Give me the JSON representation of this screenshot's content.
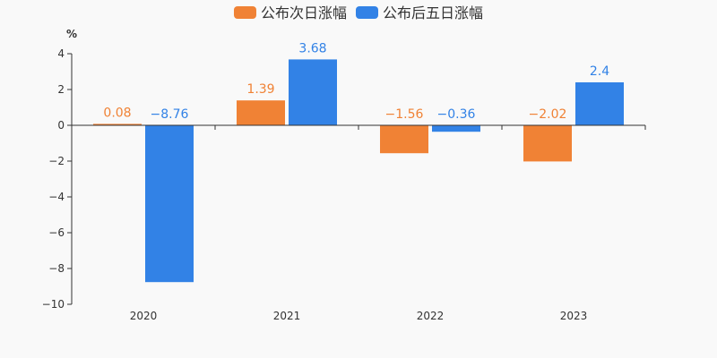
{
  "chart_data": {
    "type": "bar",
    "categories": [
      "2020",
      "2021",
      "2022",
      "2023"
    ],
    "series": [
      {
        "name": "公布次日涨幅",
        "values": [
          0.08,
          1.39,
          -1.56,
          -2.02
        ],
        "color": "#f08235"
      },
      {
        "name": "公布后五日涨幅",
        "values": [
          -8.76,
          3.68,
          -0.36,
          2.4
        ],
        "color": "#3282e6"
      }
    ],
    "data_labels": [
      [
        "0.08",
        "1.39",
        "−1.56",
        "−2.02"
      ],
      [
        "−8.76",
        "3.68",
        "−0.36",
        "2.4"
      ]
    ],
    "ylabel": "%",
    "ylim": [
      -10,
      4
    ],
    "yticks": [
      4,
      2,
      0,
      -2,
      -4,
      -6,
      -8,
      -10
    ],
    "ytick_labels": [
      "4",
      "2",
      "0",
      "−2",
      "−4",
      "−6",
      "−8",
      "−10"
    ],
    "grid": false,
    "legend_position": "top-center"
  }
}
